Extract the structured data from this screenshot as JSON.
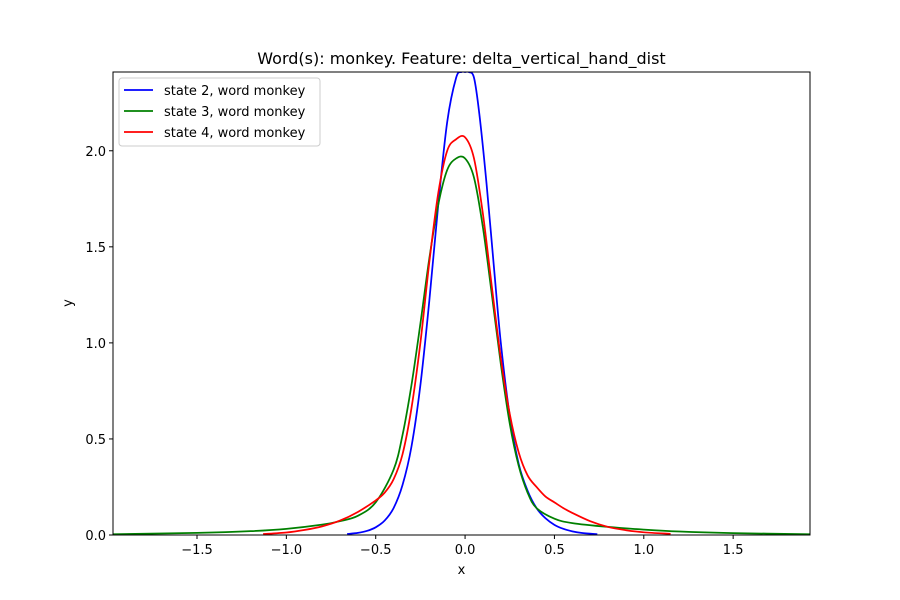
{
  "chart_data": {
    "type": "line",
    "title": "Word(s): monkey. Feature: delta_vertical_hand_dist",
    "xlabel": "x",
    "ylabel": "y",
    "xlim": [
      -1.97,
      1.93
    ],
    "ylim": [
      0,
      2.41
    ],
    "xticks": [
      -1.5,
      -1.0,
      -0.5,
      0.0,
      0.5,
      1.0,
      1.5
    ],
    "xtick_labels": [
      "−1.5",
      "−1.0",
      "−0.5",
      "0.0",
      "0.5",
      "1.0",
      "1.5"
    ],
    "yticks": [
      0.0,
      0.5,
      1.0,
      1.5,
      2.0
    ],
    "ytick_labels": [
      "0.0",
      "0.5",
      "1.0",
      "1.5",
      "2.0"
    ],
    "grid": false,
    "legend_position": "top-left",
    "series": [
      {
        "name": "state 2, word monkey",
        "color": "#0000ff",
        "x": [
          -0.66,
          -0.6,
          -0.55,
          -0.5,
          -0.45,
          -0.4,
          -0.35,
          -0.3,
          -0.25,
          -0.2,
          -0.15,
          -0.1,
          -0.05,
          -0.02,
          0.0,
          0.02,
          0.05,
          0.08,
          0.12,
          0.16,
          0.2,
          0.25,
          0.3,
          0.35,
          0.4,
          0.45,
          0.5,
          0.55,
          0.6,
          0.65,
          0.74
        ],
        "y": [
          0.005,
          0.011,
          0.021,
          0.04,
          0.075,
          0.14,
          0.26,
          0.46,
          0.78,
          1.22,
          1.72,
          2.15,
          2.38,
          2.41,
          2.41,
          2.41,
          2.38,
          2.19,
          1.83,
          1.41,
          1.0,
          0.62,
          0.37,
          0.23,
          0.14,
          0.087,
          0.053,
          0.032,
          0.019,
          0.011,
          0.004
        ]
      },
      {
        "name": "state 3, word monkey",
        "color": "#008000",
        "x": [
          -1.97,
          -1.5,
          -1.2,
          -1.0,
          -0.8,
          -0.7,
          -0.6,
          -0.5,
          -0.4,
          -0.35,
          -0.3,
          -0.25,
          -0.2,
          -0.15,
          -0.1,
          -0.05,
          0.0,
          0.05,
          0.1,
          0.15,
          0.2,
          0.25,
          0.3,
          0.35,
          0.4,
          0.5,
          0.6,
          0.8,
          1.0,
          1.2,
          1.5,
          1.93
        ],
        "y": [
          0.004,
          0.011,
          0.02,
          0.032,
          0.054,
          0.072,
          0.1,
          0.17,
          0.34,
          0.52,
          0.78,
          1.1,
          1.44,
          1.72,
          1.9,
          1.96,
          1.96,
          1.86,
          1.6,
          1.25,
          0.89,
          0.58,
          0.36,
          0.22,
          0.14,
          0.085,
          0.062,
          0.042,
          0.028,
          0.018,
          0.01,
          0.004
        ]
      },
      {
        "name": "state 4, word monkey",
        "color": "#ff0000",
        "x": [
          -1.13,
          -1.0,
          -0.9,
          -0.8,
          -0.7,
          -0.6,
          -0.5,
          -0.45,
          -0.4,
          -0.35,
          -0.3,
          -0.25,
          -0.2,
          -0.15,
          -0.1,
          -0.05,
          0.0,
          0.05,
          0.1,
          0.15,
          0.2,
          0.25,
          0.3,
          0.35,
          0.4,
          0.45,
          0.5,
          0.55,
          0.6,
          0.7,
          0.8,
          0.9,
          1.0,
          1.15
        ],
        "y": [
          0.005,
          0.013,
          0.026,
          0.045,
          0.075,
          0.12,
          0.18,
          0.22,
          0.29,
          0.42,
          0.66,
          1.0,
          1.42,
          1.78,
          2.0,
          2.06,
          2.07,
          1.96,
          1.67,
          1.29,
          0.92,
          0.63,
          0.43,
          0.31,
          0.25,
          0.2,
          0.17,
          0.14,
          0.115,
          0.072,
          0.042,
          0.025,
          0.014,
          0.006
        ]
      }
    ]
  }
}
